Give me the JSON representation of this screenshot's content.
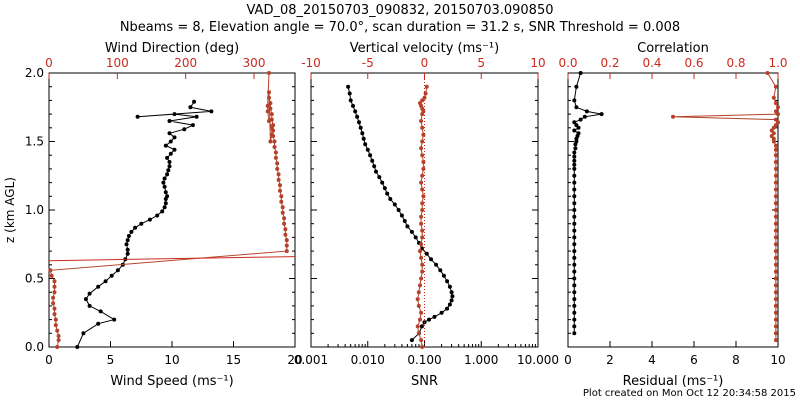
{
  "title": {
    "line1": "VAD_08_20150703_090832, 20150703.090850",
    "line2": "Nbeams = 8, Elevation angle = 70.0°, scan duration = 31.2 s, SNR Threshold = 0.008"
  },
  "footer": "Plot created on Mon Oct 12 20:34:58 2015",
  "colors": {
    "black": "#000000",
    "red": "#cc2a1e",
    "redPts": "#b5422a"
  },
  "chart_data": [
    {
      "type": "line",
      "panel": "left",
      "ylabel": "z (km AGL)",
      "ylim": [
        0,
        2
      ],
      "yticks": [
        "0.0",
        "0.5",
        "1.0",
        "1.5",
        "2.0"
      ],
      "bottom_axis": {
        "label": "Wind Speed (ms⁻¹)",
        "lim": [
          0,
          20
        ],
        "ticks": [
          "0",
          "5",
          "10",
          "15",
          "20"
        ]
      },
      "top_axis": {
        "label": "Wind Direction (deg)",
        "lim": [
          0,
          360
        ],
        "ticks": [
          "0",
          "100",
          "200",
          "300"
        ]
      },
      "series": [
        {
          "axis": "bottom",
          "color": "#000000",
          "x": [
            2.3,
            2.8,
            4.0,
            5.3,
            4.2,
            3.3,
            3.0,
            3.3,
            4.0,
            4.6,
            5.1,
            5.6,
            6.0,
            6.2,
            6.4,
            6.4,
            6.3,
            6.4,
            6.5,
            6.7,
            7.0,
            7.5,
            8.2,
            8.8,
            9.2,
            9.4,
            9.5,
            9.5,
            9.6,
            9.5,
            9.4,
            9.3,
            9.4,
            9.6,
            9.7,
            9.8,
            9.8,
            9.6,
            9.9,
            10.2,
            9.5,
            9.9,
            10.2,
            9.8,
            11.0,
            11.7,
            9.8,
            12.0,
            10.2,
            7.2,
            13.2,
            11.5,
            11.8
          ],
          "y": [
            0.0,
            0.1,
            0.17,
            0.2,
            0.26,
            0.3,
            0.35,
            0.39,
            0.44,
            0.48,
            0.52,
            0.56,
            0.6,
            0.64,
            0.68,
            0.71,
            0.75,
            0.78,
            0.81,
            0.84,
            0.87,
            0.9,
            0.93,
            0.96,
            0.99,
            1.02,
            1.05,
            1.08,
            1.1,
            1.13,
            1.17,
            1.2,
            1.23,
            1.26,
            1.29,
            1.32,
            1.35,
            1.38,
            1.41,
            1.44,
            1.47,
            1.5,
            1.53,
            1.56,
            1.59,
            1.62,
            1.65,
            1.68,
            1.7,
            1.68,
            1.72,
            1.75,
            1.79
          ]
        },
        {
          "axis": "top",
          "color": "#b5422a",
          "x": [
            12,
            14,
            14,
            12,
            10,
            10,
            8,
            8,
            6,
            6,
            8,
            8,
            8,
            4,
            2,
            348,
            348,
            348,
            346,
            346,
            344,
            344,
            342,
            342,
            340,
            340,
            338,
            338,
            336,
            336,
            334,
            334,
            332,
            332,
            330,
            330,
            328,
            328,
            328,
            326,
            326,
            324,
            324,
            322,
            322,
            324,
            326,
            326,
            322,
            320,
            320,
            322
          ],
          "y": [
            0.0,
            0.05,
            0.08,
            0.12,
            0.16,
            0.2,
            0.24,
            0.28,
            0.32,
            0.36,
            0.4,
            0.44,
            0.48,
            0.52,
            0.56,
            0.7,
            0.74,
            0.78,
            0.82,
            0.86,
            0.9,
            0.94,
            0.98,
            1.02,
            1.06,
            1.1,
            1.14,
            1.18,
            1.22,
            1.26,
            1.3,
            1.34,
            1.38,
            1.42,
            1.46,
            1.5,
            1.54,
            1.58,
            1.62,
            1.66,
            1.7,
            1.74,
            1.78,
            1.82,
            1.86,
            1.5,
            1.55,
            1.6,
            1.65,
            1.72,
            1.76,
            2.0
          ]
        },
        {
          "axis": "top",
          "color": "#cc2a1e",
          "x": [
            0,
            360
          ],
          "y": [
            0.63,
            0.66
          ]
        }
      ]
    },
    {
      "type": "line",
      "panel": "middle",
      "ylim": [
        0,
        2
      ],
      "bottom_axis": {
        "label": "SNR",
        "lim": [
          0.001,
          10
        ],
        "scale": "log",
        "ticks": [
          "0.001",
          "0.010",
          "0.100",
          "1.000",
          "10.000"
        ]
      },
      "top_axis": {
        "label": "Vertical velocity (ms⁻¹)",
        "lim": [
          -10,
          10
        ],
        "ticks": [
          "-10",
          "-5",
          "0",
          "5",
          "10"
        ]
      },
      "series": [
        {
          "axis": "bottom",
          "color": "#000000",
          "x": [
            0.06,
            0.08,
            0.09,
            0.1,
            0.12,
            0.15,
            0.2,
            0.25,
            0.28,
            0.3,
            0.31,
            0.3,
            0.28,
            0.25,
            0.22,
            0.19,
            0.16,
            0.13,
            0.11,
            0.09,
            0.08,
            0.07,
            0.06,
            0.05,
            0.045,
            0.04,
            0.035,
            0.03,
            0.025,
            0.022,
            0.02,
            0.018,
            0.016,
            0.014,
            0.013,
            0.012,
            0.011,
            0.01,
            0.009,
            0.0085,
            0.008,
            0.0075,
            0.007,
            0.0065,
            0.006,
            0.0055,
            0.005,
            0.0048,
            0.0045
          ],
          "y": [
            0.05,
            0.1,
            0.15,
            0.18,
            0.2,
            0.22,
            0.25,
            0.28,
            0.31,
            0.34,
            0.37,
            0.4,
            0.44,
            0.48,
            0.52,
            0.56,
            0.6,
            0.64,
            0.68,
            0.72,
            0.76,
            0.8,
            0.84,
            0.88,
            0.92,
            0.96,
            1.0,
            1.04,
            1.08,
            1.12,
            1.16,
            1.2,
            1.24,
            1.28,
            1.32,
            1.36,
            1.4,
            1.44,
            1.48,
            1.52,
            1.56,
            1.6,
            1.64,
            1.68,
            1.72,
            1.76,
            1.8,
            1.85,
            1.9
          ]
        },
        {
          "axis": "top",
          "color": "#b5422a",
          "x": [
            -0.2,
            -0.3,
            -0.5,
            -0.6,
            -0.4,
            -0.3,
            -0.5,
            -0.6,
            -0.5,
            -0.4,
            -0.3,
            -0.2,
            -0.2,
            -0.3,
            -0.4,
            -0.3,
            -0.2,
            -0.2,
            -0.3,
            -0.3,
            -0.2,
            -0.2,
            -0.1,
            -0.2,
            -0.3,
            -0.2,
            -0.1,
            -0.1,
            -0.2,
            -0.3,
            -0.2,
            -0.1,
            -0.2,
            -0.3,
            -0.2,
            -0.1,
            -0.2,
            -0.3,
            -0.4,
            -0.2,
            0.0,
            0.1,
            0.2
          ],
          "y": [
            0.0,
            0.05,
            0.1,
            0.15,
            0.2,
            0.25,
            0.3,
            0.35,
            0.4,
            0.45,
            0.5,
            0.55,
            0.6,
            0.65,
            0.7,
            0.75,
            0.8,
            0.85,
            0.9,
            0.95,
            1.0,
            1.05,
            1.1,
            1.15,
            1.2,
            1.25,
            1.3,
            1.35,
            1.4,
            1.45,
            1.5,
            1.55,
            1.6,
            1.65,
            1.7,
            1.72,
            1.74,
            1.76,
            1.78,
            1.8,
            1.82,
            1.85,
            1.9
          ]
        },
        {
          "axis": "top",
          "color": "#cc2a1e",
          "dotted": true,
          "x": [
            0,
            0
          ],
          "y": [
            0,
            2
          ]
        }
      ]
    },
    {
      "type": "line",
      "panel": "right",
      "ylim": [
        0,
        2
      ],
      "bottom_axis": {
        "label": "Residual (ms⁻¹)",
        "lim": [
          0,
          10
        ],
        "ticks": [
          "0",
          "2",
          "4",
          "6",
          "8",
          "10"
        ]
      },
      "top_axis": {
        "label": "Correlation",
        "lim": [
          0,
          1
        ],
        "ticks": [
          "0.0",
          "0.2",
          "0.4",
          "0.6",
          "0.8",
          "1.0"
        ]
      },
      "series": [
        {
          "axis": "bottom",
          "color": "#000000",
          "x": [
            0.3,
            0.3,
            0.3,
            0.3,
            0.3,
            0.3,
            0.3,
            0.3,
            0.3,
            0.3,
            0.3,
            0.3,
            0.3,
            0.3,
            0.3,
            0.3,
            0.3,
            0.3,
            0.3,
            0.3,
            0.3,
            0.3,
            0.3,
            0.3,
            0.3,
            0.3,
            0.3,
            0.3,
            0.3,
            0.35,
            0.35,
            0.4,
            0.4,
            0.45,
            0.5,
            0.3,
            0.5,
            0.4,
            0.3,
            0.6,
            0.8,
            1.6,
            0.9,
            0.4,
            0.3,
            0.4,
            0.6
          ],
          "y": [
            0.1,
            0.15,
            0.2,
            0.25,
            0.3,
            0.35,
            0.4,
            0.45,
            0.5,
            0.55,
            0.6,
            0.65,
            0.7,
            0.75,
            0.8,
            0.85,
            0.9,
            0.95,
            1.0,
            1.05,
            1.1,
            1.15,
            1.2,
            1.25,
            1.3,
            1.33,
            1.36,
            1.39,
            1.42,
            1.45,
            1.48,
            1.5,
            1.52,
            1.54,
            1.56,
            1.58,
            1.6,
            1.62,
            1.64,
            1.66,
            1.68,
            1.7,
            1.72,
            1.75,
            1.8,
            1.9,
            2.0
          ]
        },
        {
          "axis": "top",
          "color": "#b5422a",
          "x": [
            0.99,
            0.99,
            0.99,
            0.99,
            0.99,
            0.99,
            0.99,
            0.99,
            0.99,
            0.99,
            0.99,
            0.99,
            0.99,
            0.99,
            0.99,
            0.99,
            0.99,
            0.99,
            0.99,
            0.99,
            0.99,
            0.99,
            0.99,
            0.99,
            0.99,
            0.99,
            0.99,
            0.99,
            0.99,
            0.99,
            0.98,
            0.98,
            0.97,
            0.98,
            0.97,
            0.98,
            0.99,
            1.0,
            0.99,
            0.5,
            1.0,
            0.99,
            1.0,
            0.99,
            0.98,
            0.99,
            0.95
          ],
          "y": [
            0.05,
            0.1,
            0.15,
            0.2,
            0.25,
            0.3,
            0.35,
            0.4,
            0.45,
            0.5,
            0.55,
            0.6,
            0.65,
            0.7,
            0.75,
            0.8,
            0.85,
            0.9,
            0.95,
            1.0,
            1.05,
            1.1,
            1.15,
            1.2,
            1.25,
            1.3,
            1.35,
            1.4,
            1.44,
            1.47,
            1.5,
            1.52,
            1.54,
            1.56,
            1.58,
            1.6,
            1.62,
            1.64,
            1.66,
            1.68,
            1.7,
            1.72,
            1.75,
            1.78,
            1.82,
            1.9,
            2.0
          ]
        }
      ]
    }
  ]
}
